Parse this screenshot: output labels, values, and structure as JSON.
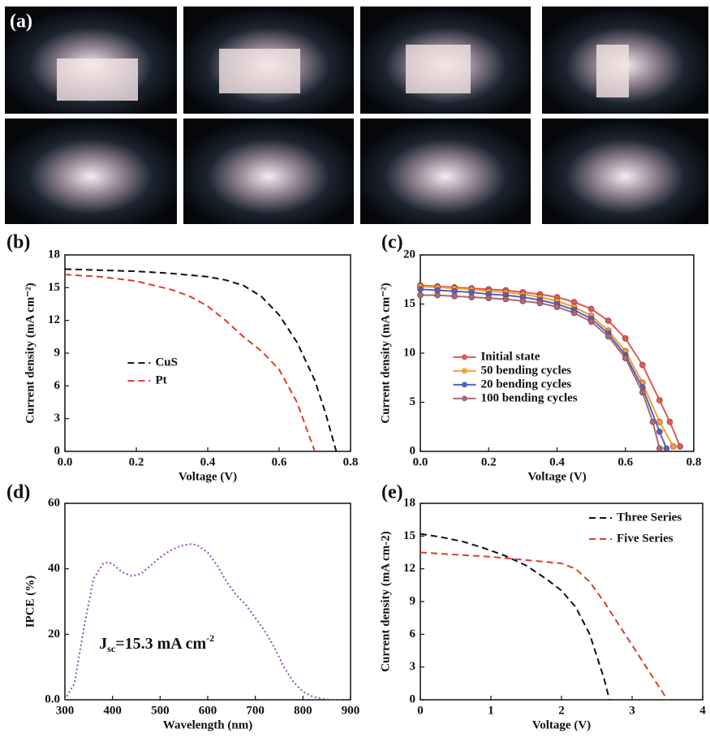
{
  "figure_label": "(a)",
  "chart_data": [
    {
      "type": "line",
      "label": "(b)",
      "xlabel": "Voltage (V)",
      "ylabel": "Current density (mA cm⁻²)",
      "xlim": [
        0,
        0.8
      ],
      "xticks": [
        {
          "value": 0,
          "label": "0.0"
        },
        0.2,
        0.4,
        0.6,
        0.8
      ],
      "ylim": [
        0,
        18
      ],
      "yticks": [
        0,
        3,
        6,
        9,
        12,
        15,
        18
      ],
      "legend": "center-left",
      "series": [
        {
          "name": "CuS",
          "color": "#111111",
          "dash": "dashed",
          "x": [
            0,
            0.1,
            0.2,
            0.3,
            0.4,
            0.45,
            0.5,
            0.55,
            0.6,
            0.65,
            0.7,
            0.73,
            0.76
          ],
          "values": [
            16.7,
            16.6,
            16.5,
            16.3,
            16.0,
            15.7,
            15.2,
            14.2,
            12.5,
            10.0,
            6.5,
            3.5,
            0
          ]
        },
        {
          "name": "Pt",
          "color": "#e03a2a",
          "dash": "dashed",
          "x": [
            0,
            0.1,
            0.2,
            0.3,
            0.35,
            0.4,
            0.45,
            0.5,
            0.55,
            0.6,
            0.65,
            0.7
          ],
          "values": [
            16.2,
            16.0,
            15.6,
            14.8,
            14.2,
            13.3,
            12.0,
            10.5,
            9.2,
            7.5,
            4.5,
            0
          ]
        }
      ]
    },
    {
      "type": "line",
      "label": "(c)",
      "xlabel": "Voltage (V)",
      "ylabel": "Current density (mA cm⁻²)",
      "markers": true,
      "xlim": [
        0,
        0.8
      ],
      "xticks": [
        {
          "value": 0,
          "label": "0.0"
        },
        0.2,
        0.4,
        0.6,
        0.8
      ],
      "ylim": [
        0,
        20
      ],
      "yticks": [
        0,
        5,
        10,
        15,
        20
      ],
      "legend": "lower-left",
      "series": [
        {
          "name": "Initial state",
          "color": "#e05a55",
          "dash": "solid",
          "x": [
            0,
            0.05,
            0.1,
            0.15,
            0.2,
            0.25,
            0.3,
            0.35,
            0.4,
            0.45,
            0.5,
            0.55,
            0.6,
            0.65,
            0.7,
            0.73,
            0.76
          ],
          "values": [
            16.9,
            16.8,
            16.7,
            16.6,
            16.5,
            16.4,
            16.2,
            16.0,
            15.7,
            15.2,
            14.5,
            13.3,
            11.5,
            8.8,
            5.2,
            3.0,
            0.5
          ]
        },
        {
          "name": "50 bending cycles",
          "color": "#f0a030",
          "dash": "solid",
          "x": [
            0,
            0.05,
            0.1,
            0.15,
            0.2,
            0.25,
            0.3,
            0.35,
            0.4,
            0.45,
            0.5,
            0.55,
            0.6,
            0.65,
            0.7,
            0.74
          ],
          "values": [
            16.8,
            16.7,
            16.6,
            16.5,
            16.3,
            16.2,
            16.0,
            15.7,
            15.3,
            14.7,
            13.8,
            12.3,
            10.2,
            7.0,
            3.0,
            0.5
          ]
        },
        {
          "name": "20 bending cycles",
          "color": "#5563c0",
          "dash": "solid",
          "x": [
            0,
            0.05,
            0.1,
            0.15,
            0.2,
            0.25,
            0.3,
            0.35,
            0.4,
            0.45,
            0.5,
            0.55,
            0.6,
            0.65,
            0.7,
            0.72
          ],
          "values": [
            16.5,
            16.4,
            16.3,
            16.2,
            16.0,
            15.9,
            15.7,
            15.4,
            15.0,
            14.4,
            13.5,
            12.0,
            9.8,
            6.5,
            2.0,
            0.3
          ]
        },
        {
          "name": "100 bending cycles",
          "color": "#a86a78",
          "dash": "solid",
          "x": [
            0,
            0.05,
            0.1,
            0.15,
            0.2,
            0.25,
            0.3,
            0.35,
            0.4,
            0.45,
            0.5,
            0.55,
            0.6,
            0.65,
            0.68,
            0.7
          ],
          "values": [
            15.9,
            15.9,
            15.8,
            15.7,
            15.6,
            15.5,
            15.3,
            15.1,
            14.7,
            14.1,
            13.2,
            11.7,
            9.5,
            6.0,
            3.0,
            0.3
          ]
        }
      ]
    },
    {
      "type": "line",
      "label": "(d)",
      "xlabel": "Wavelength (nm)",
      "ylabel": "IPCE (%)",
      "annotation": [
        "J",
        "sc",
        "=15.3 mA cm",
        "-2"
      ],
      "xlim": [
        300,
        900
      ],
      "xticks": [
        300,
        400,
        500,
        600,
        700,
        800,
        900
      ],
      "ylim": [
        0,
        60
      ],
      "yticks": [
        {
          "value": 0,
          "label": "0.0"
        },
        20,
        40,
        60
      ],
      "series": [
        {
          "color": "#8a4fb0",
          "dash": "dotted",
          "x": [
            300,
            320,
            340,
            360,
            380,
            390,
            400,
            420,
            440,
            460,
            480,
            500,
            520,
            540,
            560,
            570,
            580,
            600,
            620,
            640,
            660,
            680,
            700,
            720,
            740,
            760,
            780,
            800,
            820,
            840,
            860,
            880
          ],
          "values": [
            0,
            5,
            22,
            37,
            41.5,
            42,
            41.5,
            39,
            37.8,
            38.5,
            41,
            43.5,
            45.5,
            46.8,
            47.5,
            47.5,
            47,
            45,
            41,
            36,
            32,
            29,
            25,
            21,
            16,
            10,
            5.5,
            2.5,
            1,
            0.3,
            0,
            0
          ]
        }
      ]
    },
    {
      "type": "line",
      "label": "(e)",
      "xlabel": "Voltage (V)",
      "ylabel": "Current density (mA cm-2)",
      "xlim": [
        0,
        4
      ],
      "xticks": [
        0,
        1,
        2,
        3,
        4
      ],
      "ylim": [
        0,
        18
      ],
      "yticks": [
        0,
        3,
        6,
        9,
        12,
        15,
        18
      ],
      "legend": "upper-right",
      "series": [
        {
          "name": "Three Series",
          "color": "#111111",
          "dash": "dashed",
          "x": [
            0,
            0.3,
            0.6,
            0.9,
            1.2,
            1.5,
            1.8,
            2.0,
            2.2,
            2.4,
            2.5,
            2.6,
            2.68
          ],
          "values": [
            15.2,
            14.9,
            14.5,
            13.9,
            13.2,
            12.3,
            11.0,
            10.0,
            8.5,
            6.0,
            4.0,
            2.0,
            0
          ]
        },
        {
          "name": "Five Series",
          "color": "#e03a2a",
          "dash": "dashed",
          "x": [
            0,
            0.5,
            1.0,
            1.5,
            2.0,
            2.2,
            2.4,
            2.6,
            2.8,
            3.0,
            3.2,
            3.4,
            3.5
          ],
          "values": [
            13.5,
            13.3,
            13.1,
            12.8,
            12.5,
            12.0,
            10.8,
            9.0,
            7.0,
            5.0,
            3.0,
            1.0,
            0
          ]
        }
      ]
    }
  ]
}
